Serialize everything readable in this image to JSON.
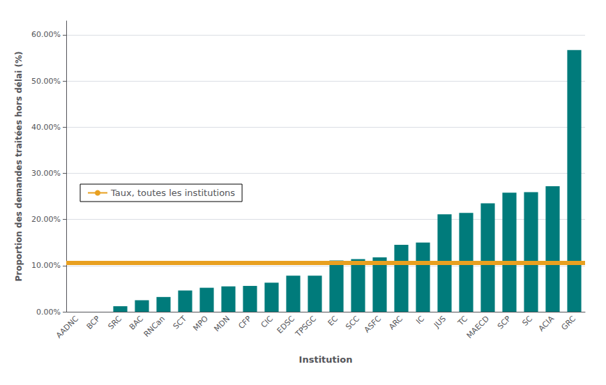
{
  "chart_data": {
    "type": "bar",
    "xlabel": "Institution",
    "ylabel": "Proportion des demandes traitées hors délai (%)",
    "categories": [
      "AADNC",
      "BCP",
      "SRC",
      "BAC",
      "RNCan",
      "SCT",
      "MPO",
      "MDN",
      "CFP",
      "CIC",
      "EDSC",
      "TPSGC",
      "EC",
      "SCC",
      "ASFC",
      "ARC",
      "IC",
      "JUS",
      "TC",
      "MAECD",
      "SCP",
      "SC",
      "ACIA",
      "GRC"
    ],
    "values": [
      0.0,
      0.0,
      1.2,
      2.5,
      3.2,
      4.6,
      5.2,
      5.5,
      5.6,
      6.3,
      7.8,
      7.8,
      11.1,
      11.4,
      11.8,
      14.5,
      15.0,
      21.1,
      21.4,
      23.5,
      25.8,
      25.9,
      27.2,
      56.7
    ],
    "color": "#007b7b",
    "reference_line": {
      "value": 10.6,
      "label": "Taux, toutes les institutions",
      "color": "#E8A020"
    },
    "ylim": [
      0,
      63
    ],
    "yticks": [
      {
        "value": 0,
        "label": "0.00%"
      },
      {
        "value": 10,
        "label": "10.00%"
      },
      {
        "value": 20,
        "label": "20.00%"
      },
      {
        "value": 30,
        "label": "30.00%"
      },
      {
        "value": 40,
        "label": "40.00%"
      },
      {
        "value": 50,
        "label": "50.00%"
      },
      {
        "value": 60,
        "label": "60.00%"
      }
    ],
    "grid": true,
    "legend": "left"
  }
}
